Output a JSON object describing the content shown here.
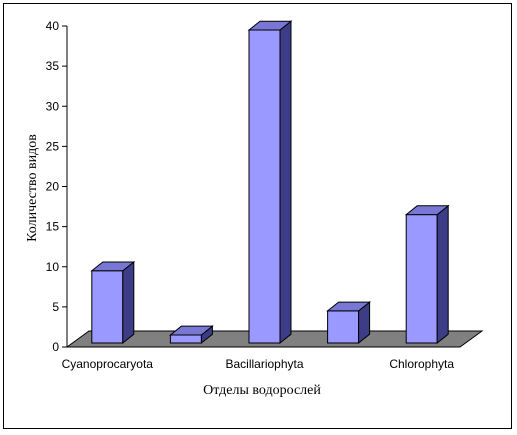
{
  "chart_data": {
    "type": "bar",
    "categories": [
      "Cyanoprocaryota",
      "",
      "Bacillariophyta",
      "",
      "Chlorophyta"
    ],
    "values": [
      9,
      1,
      39,
      4,
      16
    ],
    "ylim": [
      0,
      40
    ],
    "yticks": [
      0,
      5,
      10,
      15,
      20,
      25,
      30,
      35,
      40
    ],
    "xlabel": "Отделы водорослей",
    "ylabel": "Количество видов",
    "grid": false,
    "legend": "none",
    "colors": {
      "bar_front": "#9999ff",
      "bar_side": "#3d3d87",
      "bar_top": "#7878d4",
      "floor": "#808080",
      "axis": "#000000"
    }
  }
}
